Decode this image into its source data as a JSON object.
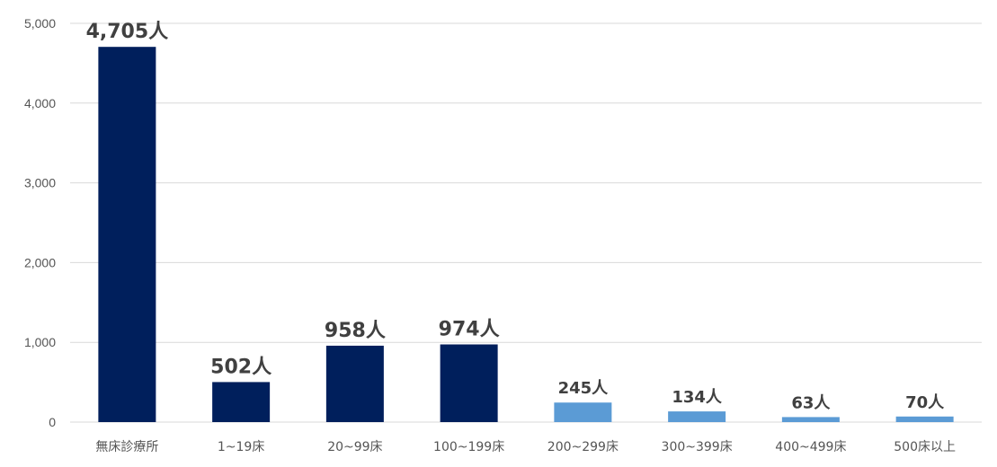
{
  "colors": {
    "primary": "#001f5c",
    "secondary": "#5b9bd5",
    "grid": "#d9d9d9",
    "text": "#555555",
    "label": "#404040"
  },
  "chart_data": {
    "type": "bar",
    "categories": [
      "無床診療所",
      "1~19床",
      "20~99床",
      "100~199床",
      "200~299床",
      "300~399床",
      "400~499床",
      "500床以上"
    ],
    "values": [
      4705,
      502,
      958,
      974,
      245,
      134,
      63,
      70
    ],
    "data_labels": [
      "4,705人",
      "502人",
      "958人",
      "974人",
      "245人",
      "134人",
      "63人",
      "70人"
    ],
    "bar_colors": [
      "#001f5c",
      "#001f5c",
      "#001f5c",
      "#001f5c",
      "#5b9bd5",
      "#5b9bd5",
      "#5b9bd5",
      "#5b9bd5"
    ],
    "y_ticks": [
      0,
      1000,
      2000,
      3000,
      4000,
      5000
    ],
    "y_tick_labels": [
      "0",
      "1,000",
      "2,000",
      "3,000",
      "4,000",
      "5,000"
    ],
    "ylim": [
      0,
      5000
    ],
    "grid": true,
    "legend": "none",
    "title": "",
    "xlabel": "",
    "ylabel": ""
  }
}
